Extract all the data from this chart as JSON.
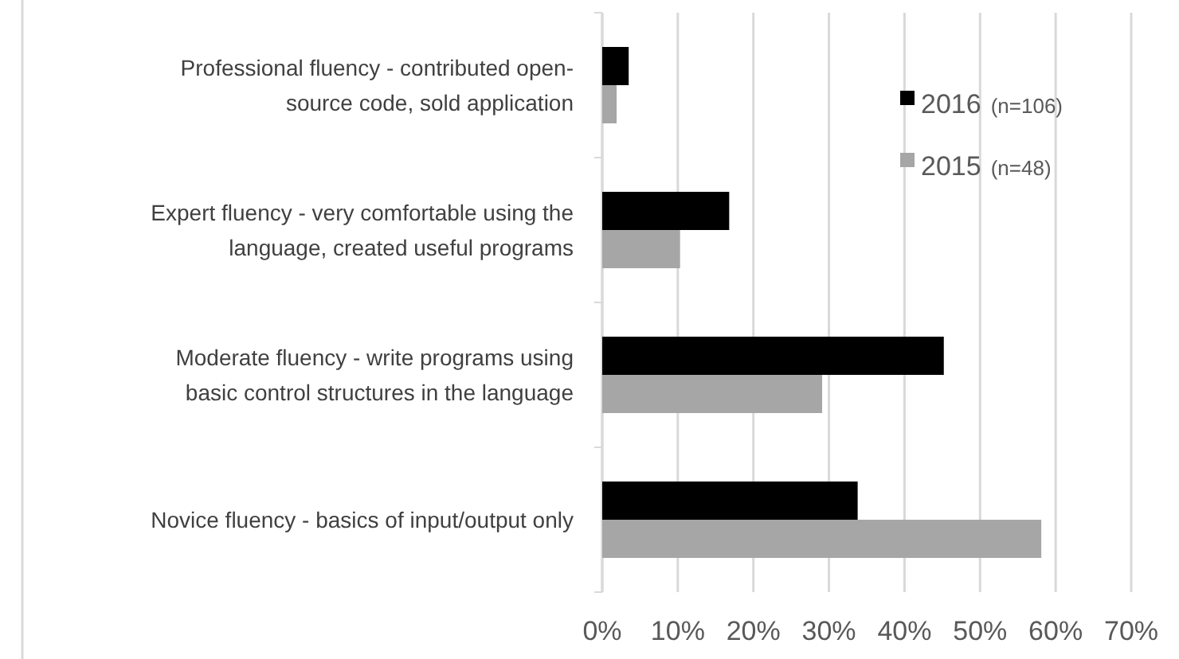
{
  "chart_data": {
    "type": "bar",
    "orientation": "horizontal",
    "categories": [
      "Professional fluency - contributed open-source code, sold application",
      "Expert fluency - very comfortable using the language, created useful programs",
      "Moderate fluency - write programs using basic control structures in the language",
      "Novice fluency - basics of input/output only"
    ],
    "series": [
      {
        "name": "2016 (n=106)",
        "color": "#000000",
        "values": [
          3.5,
          16.8,
          45.2,
          33.8
        ]
      },
      {
        "name": "2015 (n=48)",
        "color": "#a6a6a6",
        "values": [
          1.9,
          10.3,
          29.1,
          58.1
        ]
      }
    ],
    "xlim": [
      0,
      70
    ],
    "xticks": [
      {
        "value": 0,
        "label": "0%"
      },
      {
        "value": 10,
        "label": "10%"
      },
      {
        "value": 20,
        "label": "20%"
      },
      {
        "value": 30,
        "label": "30%"
      },
      {
        "value": 40,
        "label": "40%"
      },
      {
        "value": 50,
        "label": "50%"
      },
      {
        "value": 60,
        "label": "60%"
      },
      {
        "value": 70,
        "label": "70%"
      }
    ],
    "grid": "x",
    "legend": "top right"
  }
}
